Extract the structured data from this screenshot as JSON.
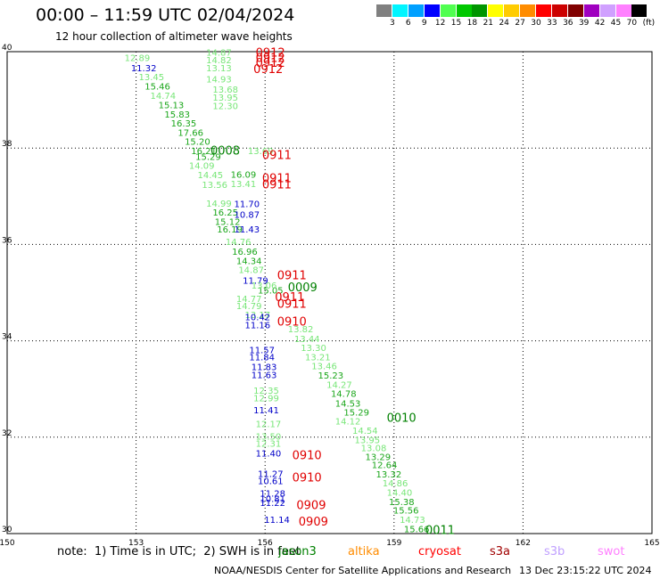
{
  "header": {
    "title": "00:00 – 11:59 UTC 02/04/2024",
    "subtitle": "12 hour collection of altimeter wave heights"
  },
  "legend": {
    "unit": "(ft)",
    "bins": [
      {
        "label": "3",
        "color": "#808080"
      },
      {
        "label": "6",
        "color": "#00f5ff"
      },
      {
        "label": "9",
        "color": "#00a0ff"
      },
      {
        "label": "12",
        "color": "#0000ff"
      },
      {
        "label": "15",
        "color": "#50ff50"
      },
      {
        "label": "18",
        "color": "#00c800"
      },
      {
        "label": "21",
        "color": "#009600"
      },
      {
        "label": "24",
        "color": "#ffff00"
      },
      {
        "label": "27",
        "color": "#ffcc00"
      },
      {
        "label": "30",
        "color": "#ff8c00"
      },
      {
        "label": "33",
        "color": "#ff0000"
      },
      {
        "label": "36",
        "color": "#cc0000"
      },
      {
        "label": "39",
        "color": "#800000"
      },
      {
        "label": "42",
        "color": "#a000c0"
      },
      {
        "label": "45",
        "color": "#d0a0ff"
      },
      {
        "label": "70",
        "color": "#ff80ff"
      },
      {
        "label": "",
        "color": "#000000"
      }
    ]
  },
  "map": {
    "lon_range": [
      150,
      165
    ],
    "lat_range": [
      30,
      40
    ],
    "lon_ticks": [
      "150",
      "153",
      "156",
      "159",
      "162",
      "165"
    ],
    "lat_ticks": [
      "40",
      "38",
      "36",
      "34",
      "32",
      "30"
    ],
    "colors": {
      "blue": "#0000c8",
      "light_green": "#78e678",
      "green": "#1aa61a",
      "dark_green": "#008000",
      "red": "#e00000"
    },
    "readings": [
      {
        "lon": 152.73,
        "lat": 39.88,
        "label": "12.89",
        "c": "light_green"
      },
      {
        "lon": 152.88,
        "lat": 39.67,
        "label": "11.32",
        "c": "blue"
      },
      {
        "lon": 153.06,
        "lat": 39.48,
        "label": "13.45",
        "c": "light_green"
      },
      {
        "lon": 153.2,
        "lat": 39.29,
        "label": "15.46",
        "c": "green"
      },
      {
        "lon": 153.33,
        "lat": 39.09,
        "label": "14.74",
        "c": "light_green"
      },
      {
        "lon": 153.52,
        "lat": 38.9,
        "label": "15.13",
        "c": "green"
      },
      {
        "lon": 153.66,
        "lat": 38.71,
        "label": "15.83",
        "c": "green"
      },
      {
        "lon": 153.81,
        "lat": 38.52,
        "label": "16.35",
        "c": "green"
      },
      {
        "lon": 153.97,
        "lat": 38.33,
        "label": "17.66",
        "c": "green"
      },
      {
        "lon": 154.13,
        "lat": 38.14,
        "label": "15.20",
        "c": "green"
      },
      {
        "lon": 154.28,
        "lat": 37.95,
        "label": "16.21",
        "c": "green"
      },
      {
        "lon": 154.38,
        "lat": 37.83,
        "label": "15.29",
        "c": "green"
      },
      {
        "lon": 154.23,
        "lat": 37.64,
        "label": "14.09",
        "c": "light_green"
      },
      {
        "lon": 154.43,
        "lat": 37.45,
        "label": "14.45",
        "c": "light_green"
      },
      {
        "lon": 154.53,
        "lat": 37.25,
        "label": "13.56",
        "c": "light_green"
      },
      {
        "lon": 154.63,
        "lat": 36.86,
        "label": "14.99",
        "c": "light_green"
      },
      {
        "lon": 154.78,
        "lat": 36.67,
        "label": "16.25",
        "c": "green"
      },
      {
        "lon": 154.83,
        "lat": 36.48,
        "label": "15.12",
        "c": "green"
      },
      {
        "lon": 154.88,
        "lat": 36.32,
        "label": "16.19",
        "c": "green"
      },
      {
        "lon": 155.28,
        "lat": 36.85,
        "label": "11.70",
        "c": "blue"
      },
      {
        "lon": 155.28,
        "lat": 36.63,
        "label": "10.87",
        "c": "blue"
      },
      {
        "lon": 155.28,
        "lat": 36.32,
        "label": "11.43",
        "c": "blue"
      },
      {
        "lon": 155.2,
        "lat": 37.46,
        "label": "16.09",
        "c": "green"
      },
      {
        "lon": 155.2,
        "lat": 37.26,
        "label": "13.41",
        "c": "light_green"
      },
      {
        "lon": 155.6,
        "lat": 37.95,
        "label": "13.69",
        "c": "light_green"
      },
      {
        "lon": 155.08,
        "lat": 36.06,
        "label": "14.76",
        "c": "light_green"
      },
      {
        "lon": 155.23,
        "lat": 35.86,
        "label": "16.96",
        "c": "green"
      },
      {
        "lon": 155.33,
        "lat": 35.67,
        "label": "14.34",
        "c": "green"
      },
      {
        "lon": 155.38,
        "lat": 35.48,
        "label": "14.87",
        "c": "light_green"
      },
      {
        "lon": 155.48,
        "lat": 35.26,
        "label": "11.79",
        "c": "blue"
      },
      {
        "lon": 155.83,
        "lat": 35.06,
        "label": "15.05",
        "c": "green"
      },
      {
        "lon": 155.33,
        "lat": 34.88,
        "label": "14.77",
        "c": "light_green"
      },
      {
        "lon": 155.33,
        "lat": 34.73,
        "label": "14.79",
        "c": "light_green"
      },
      {
        "lon": 155.53,
        "lat": 34.55,
        "label": "13.17",
        "c": "light_green"
      },
      {
        "lon": 155.53,
        "lat": 34.5,
        "label": "10.42",
        "c": "blue"
      },
      {
        "lon": 155.53,
        "lat": 34.33,
        "label": "11.16",
        "c": "blue"
      },
      {
        "lon": 156.53,
        "lat": 34.25,
        "label": "13.82",
        "c": "light_green"
      },
      {
        "lon": 156.68,
        "lat": 34.05,
        "label": "13.44",
        "c": "light_green"
      },
      {
        "lon": 155.63,
        "lat": 33.82,
        "label": "11.57",
        "c": "blue"
      },
      {
        "lon": 155.63,
        "lat": 33.67,
        "label": "11.84",
        "c": "blue"
      },
      {
        "lon": 156.83,
        "lat": 33.86,
        "label": "13.30",
        "c": "light_green"
      },
      {
        "lon": 156.93,
        "lat": 33.67,
        "label": "13.21",
        "c": "light_green"
      },
      {
        "lon": 157.08,
        "lat": 33.48,
        "label": "13.46",
        "c": "light_green"
      },
      {
        "lon": 155.68,
        "lat": 33.47,
        "label": "11.83",
        "c": "blue"
      },
      {
        "lon": 155.68,
        "lat": 33.3,
        "label": "11.63",
        "c": "blue"
      },
      {
        "lon": 157.23,
        "lat": 33.29,
        "label": "15.23",
        "c": "green"
      },
      {
        "lon": 157.43,
        "lat": 33.1,
        "label": "14.27",
        "c": "light_green"
      },
      {
        "lon": 155.73,
        "lat": 32.98,
        "label": "12.35",
        "c": "light_green"
      },
      {
        "lon": 155.73,
        "lat": 32.82,
        "label": "12.99",
        "c": "light_green"
      },
      {
        "lon": 157.53,
        "lat": 32.91,
        "label": "14.78",
        "c": "green"
      },
      {
        "lon": 157.63,
        "lat": 32.71,
        "label": "14.53",
        "c": "green"
      },
      {
        "lon": 157.83,
        "lat": 32.52,
        "label": "15.29",
        "c": "green"
      },
      {
        "lon": 157.63,
        "lat": 32.34,
        "label": "14.12",
        "c": "light_green"
      },
      {
        "lon": 155.73,
        "lat": 32.57,
        "label": "11.41",
        "c": "blue"
      },
      {
        "lon": 155.78,
        "lat": 32.28,
        "label": "12.17",
        "c": "light_green"
      },
      {
        "lon": 158.03,
        "lat": 32.14,
        "label": "14.54",
        "c": "light_green"
      },
      {
        "lon": 158.08,
        "lat": 31.95,
        "label": "13.95",
        "c": "light_green"
      },
      {
        "lon": 155.78,
        "lat": 32.02,
        "label": "13.50",
        "c": "light_green"
      },
      {
        "lon": 155.78,
        "lat": 31.88,
        "label": "12.31",
        "c": "light_green"
      },
      {
        "lon": 158.23,
        "lat": 31.78,
        "label": "13.08",
        "c": "light_green"
      },
      {
        "lon": 158.33,
        "lat": 31.6,
        "label": "13.29",
        "c": "green"
      },
      {
        "lon": 155.78,
        "lat": 31.67,
        "label": "11.40",
        "c": "blue"
      },
      {
        "lon": 158.48,
        "lat": 31.43,
        "label": "12.64",
        "c": "green"
      },
      {
        "lon": 158.58,
        "lat": 31.24,
        "label": "13.32",
        "c": "green"
      },
      {
        "lon": 155.83,
        "lat": 31.25,
        "label": "11.27",
        "c": "blue"
      },
      {
        "lon": 155.83,
        "lat": 31.1,
        "label": "10.61",
        "c": "blue"
      },
      {
        "lon": 158.73,
        "lat": 31.05,
        "label": "14.86",
        "c": "light_green"
      },
      {
        "lon": 158.83,
        "lat": 30.86,
        "label": "14.40",
        "c": "light_green"
      },
      {
        "lon": 155.88,
        "lat": 30.84,
        "label": "11.28",
        "c": "blue"
      },
      {
        "lon": 155.88,
        "lat": 30.73,
        "label": "10.81",
        "c": "blue"
      },
      {
        "lon": 155.88,
        "lat": 30.65,
        "label": "11.22",
        "c": "blue"
      },
      {
        "lon": 158.88,
        "lat": 30.67,
        "label": "15.38",
        "c": "green"
      },
      {
        "lon": 158.98,
        "lat": 30.49,
        "label": "15.56",
        "c": "green"
      },
      {
        "lon": 155.98,
        "lat": 30.3,
        "label": "11.14",
        "c": "blue"
      },
      {
        "lon": 159.13,
        "lat": 30.3,
        "label": "14.73",
        "c": "light_green"
      },
      {
        "lon": 159.23,
        "lat": 30.1,
        "label": "15.66",
        "c": "green"
      }
    ],
    "overlapping": [
      {
        "lon": 154.63,
        "lat": 39.99,
        "label": "14.87",
        "c": "light_green"
      },
      {
        "lon": 154.63,
        "lat": 39.83,
        "label": "14.82",
        "c": "light_green"
      },
      {
        "lon": 154.63,
        "lat": 39.67,
        "label": "13.13",
        "c": "light_green"
      },
      {
        "lon": 154.63,
        "lat": 39.44,
        "label": "14.93",
        "c": "light_green"
      },
      {
        "lon": 154.78,
        "lat": 39.22,
        "label": "13.68",
        "c": "light_green"
      },
      {
        "lon": 154.78,
        "lat": 39.06,
        "label": "13.95",
        "c": "light_green"
      },
      {
        "lon": 154.78,
        "lat": 38.88,
        "label": "12.30",
        "c": "light_green"
      },
      {
        "lon": 155.68,
        "lat": 35.16,
        "label": "13.06",
        "c": "light_green"
      }
    ],
    "times": [
      {
        "lon": 155.78,
        "lat": 39.99,
        "label": "0912",
        "c": "red"
      },
      {
        "lon": 155.78,
        "lat": 39.78,
        "label": "0912",
        "c": "red"
      },
      {
        "lon": 155.73,
        "lat": 39.65,
        "label": "0912",
        "c": "red"
      },
      {
        "lon": 155.78,
        "lat": 39.88,
        "label": "0912",
        "c": "red"
      },
      {
        "lon": 154.73,
        "lat": 37.96,
        "label": "0008",
        "c": "dark_green"
      },
      {
        "lon": 155.93,
        "lat": 37.87,
        "label": "0911",
        "c": "red"
      },
      {
        "lon": 155.93,
        "lat": 37.39,
        "label": "0911",
        "c": "red"
      },
      {
        "lon": 155.93,
        "lat": 37.26,
        "label": "0911",
        "c": "red"
      },
      {
        "lon": 156.28,
        "lat": 35.37,
        "label": "0911",
        "c": "red"
      },
      {
        "lon": 156.53,
        "lat": 35.12,
        "label": "0009",
        "c": "dark_green"
      },
      {
        "lon": 156.23,
        "lat": 34.92,
        "label": "0911",
        "c": "red"
      },
      {
        "lon": 156.28,
        "lat": 34.78,
        "label": "0911",
        "c": "red"
      },
      {
        "lon": 156.28,
        "lat": 34.41,
        "label": "0910",
        "c": "red"
      },
      {
        "lon": 158.83,
        "lat": 32.42,
        "label": "0010",
        "c": "dark_green"
      },
      {
        "lon": 156.63,
        "lat": 31.64,
        "label": "0910",
        "c": "red"
      },
      {
        "lon": 156.63,
        "lat": 31.18,
        "label": "0910",
        "c": "red"
      },
      {
        "lon": 156.73,
        "lat": 30.6,
        "label": "0909",
        "c": "red"
      },
      {
        "lon": 156.78,
        "lat": 30.26,
        "label": "0909",
        "c": "red"
      },
      {
        "lon": 159.73,
        "lat": 30.09,
        "label": "0011",
        "c": "dark_green"
      }
    ]
  },
  "footer": {
    "note": "note:  1) Time is in UTC;  2) SWH is in feet",
    "missions": [
      {
        "label": "jason3",
        "color": "#008000",
        "x": 312
      },
      {
        "label": "altika",
        "color": "#ff8c00",
        "x": 390
      },
      {
        "label": "cryosat",
        "color": "#ff0000",
        "x": 469
      },
      {
        "label": "s3a",
        "color": "#a00000",
        "x": 549
      },
      {
        "label": "s3b",
        "color": "#c0a0ff",
        "x": 610
      },
      {
        "label": "swot",
        "color": "#ff80ff",
        "x": 670
      }
    ],
    "credit": "NOAA/NESDIS Center for Satellite Applications and Research",
    "timestamp": "13 Dec 23:15:22 UTC 2024"
  }
}
